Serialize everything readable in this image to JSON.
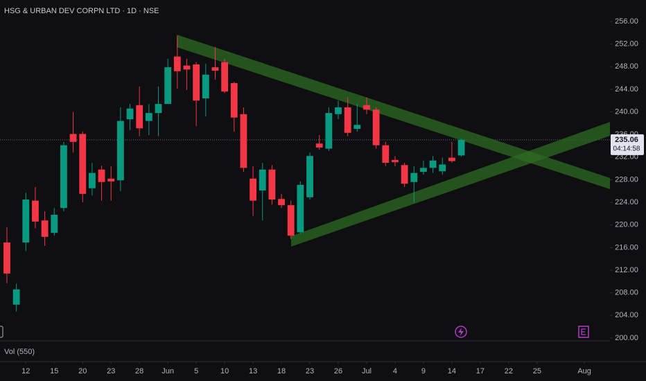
{
  "chart_data": {
    "type": "candlestick",
    "title": "HSG & URBAN DEV CORPN LTD · 1D · NSE",
    "volume_label": "Vol (550)",
    "x": [
      0,
      1,
      2,
      3,
      4,
      5,
      6,
      7,
      8,
      9,
      10,
      11,
      12,
      13,
      14,
      15,
      16,
      17,
      18,
      19,
      20,
      21,
      22,
      23,
      24,
      25,
      26,
      27,
      28,
      29,
      30,
      31,
      32,
      33,
      34,
      35,
      36,
      37,
      38,
      39,
      40,
      41,
      42,
      43,
      44,
      45,
      46,
      47,
      48
    ],
    "open": [
      216.9,
      205.9,
      216.9,
      224.3,
      220.8,
      218.6,
      223.0,
      236.1,
      236.1,
      226.5,
      229.8,
      228.2,
      227.9,
      238.7,
      241.2,
      238.4,
      239.8,
      241.4,
      249.8,
      248.2,
      248.4,
      242.4,
      247.9,
      248.8,
      245.1,
      239.6,
      228.2,
      226.1,
      229.8,
      224.6,
      223.5,
      218.7,
      224.9,
      234.4,
      233.5,
      239.6,
      240.8,
      237.0,
      241.2,
      240.4,
      234.1,
      231.5,
      230.6,
      227.6,
      229.4,
      230.1,
      229.5,
      231.9,
      232.3
    ],
    "high": [
      219.6,
      209.6,
      225.7,
      226.7,
      222.4,
      223.0,
      234.7,
      240.0,
      236.5,
      231.0,
      230.5,
      230.4,
      240.8,
      241.4,
      244.5,
      241.4,
      244.5,
      249.4,
      253.4,
      249.4,
      248.8,
      248.5,
      251.5,
      249.4,
      245.3,
      240.8,
      230.4,
      231.0,
      230.6,
      225.5,
      224.3,
      227.7,
      232.8,
      235.9,
      240.8,
      242.0,
      242.6,
      241.4,
      242.6,
      240.8,
      234.7,
      232.2,
      231.0,
      230.4,
      231.4,
      232.2,
      231.9,
      234.7,
      235.3
    ],
    "low": [
      209.7,
      204.7,
      215.4,
      219.4,
      216.3,
      218.1,
      222.4,
      232.8,
      224.0,
      225.2,
      224.3,
      224.3,
      226.0,
      236.8,
      235.7,
      235.9,
      235.7,
      242.0,
      244.1,
      243.9,
      237.5,
      239.2,
      245.7,
      243.3,
      236.5,
      229.4,
      221.6,
      220.8,
      223.6,
      223.0,
      217.5,
      218.4,
      224.5,
      233.3,
      233.1,
      238.7,
      235.7,
      236.5,
      239.6,
      233.5,
      230.4,
      230.4,
      226.7,
      224.0,
      228.9,
      229.2,
      228.9,
      231.0,
      232.1
    ],
    "close": [
      211.4,
      208.6,
      224.5,
      220.6,
      217.9,
      221.8,
      234.1,
      234.7,
      225.5,
      229.2,
      227.6,
      227.7,
      238.4,
      240.6,
      237.1,
      239.8,
      241.4,
      247.9,
      247.2,
      247.5,
      242.0,
      246.6,
      247.3,
      243.6,
      239.0,
      230.1,
      224.3,
      229.8,
      224.5,
      223.5,
      218.1,
      227.1,
      232.2,
      233.7,
      239.8,
      240.8,
      236.3,
      237.7,
      240.4,
      234.1,
      231.0,
      231.1,
      227.3,
      229.2,
      230.1,
      231.4,
      230.7,
      231.3,
      235.06
    ],
    "up_color": "#089981",
    "down_color": "#f23645",
    "xlim": [
      -0.73,
      63.7
    ],
    "ylim": [
      199.5,
      259.8
    ],
    "xticks": [
      {
        "value": 2,
        "label": "12"
      },
      {
        "value": 5,
        "label": "15"
      },
      {
        "value": 8,
        "label": "20"
      },
      {
        "value": 11,
        "label": "23"
      },
      {
        "value": 14,
        "label": "28"
      },
      {
        "value": 17,
        "label": "Jun"
      },
      {
        "value": 20,
        "label": "5"
      },
      {
        "value": 23,
        "label": "10"
      },
      {
        "value": 26,
        "label": "13"
      },
      {
        "value": 29,
        "label": "18"
      },
      {
        "value": 32,
        "label": "23"
      },
      {
        "value": 35,
        "label": "26"
      },
      {
        "value": 38,
        "label": "Jul"
      },
      {
        "value": 41,
        "label": "4"
      },
      {
        "value": 44,
        "label": "9"
      },
      {
        "value": 47,
        "label": "14"
      },
      {
        "value": 50,
        "label": "17"
      },
      {
        "value": 53,
        "label": "22"
      },
      {
        "value": 56,
        "label": "25"
      },
      {
        "value": 61,
        "label": "Aug"
      }
    ],
    "yticks": [
      {
        "value": 256,
        "label": "256.00"
      },
      {
        "value": 252,
        "label": "252.00"
      },
      {
        "value": 248,
        "label": "248.00"
      },
      {
        "value": 244,
        "label": "244.00"
      },
      {
        "value": 240,
        "label": "240.00"
      },
      {
        "value": 236,
        "label": "236.00"
      },
      {
        "value": 232,
        "label": "232.00"
      },
      {
        "value": 228,
        "label": "228.00"
      },
      {
        "value": 224,
        "label": "224.00"
      },
      {
        "value": 220,
        "label": "220.00"
      },
      {
        "value": 216,
        "label": "216.00"
      },
      {
        "value": 212,
        "label": "212.00"
      },
      {
        "value": 208,
        "label": "208.00"
      },
      {
        "value": 204,
        "label": "204.00"
      },
      {
        "value": 200,
        "label": "200.00"
      }
    ],
    "last_price": {
      "value": 235.06,
      "label": "235.06"
    },
    "countdown": "04:14:58"
  }
}
